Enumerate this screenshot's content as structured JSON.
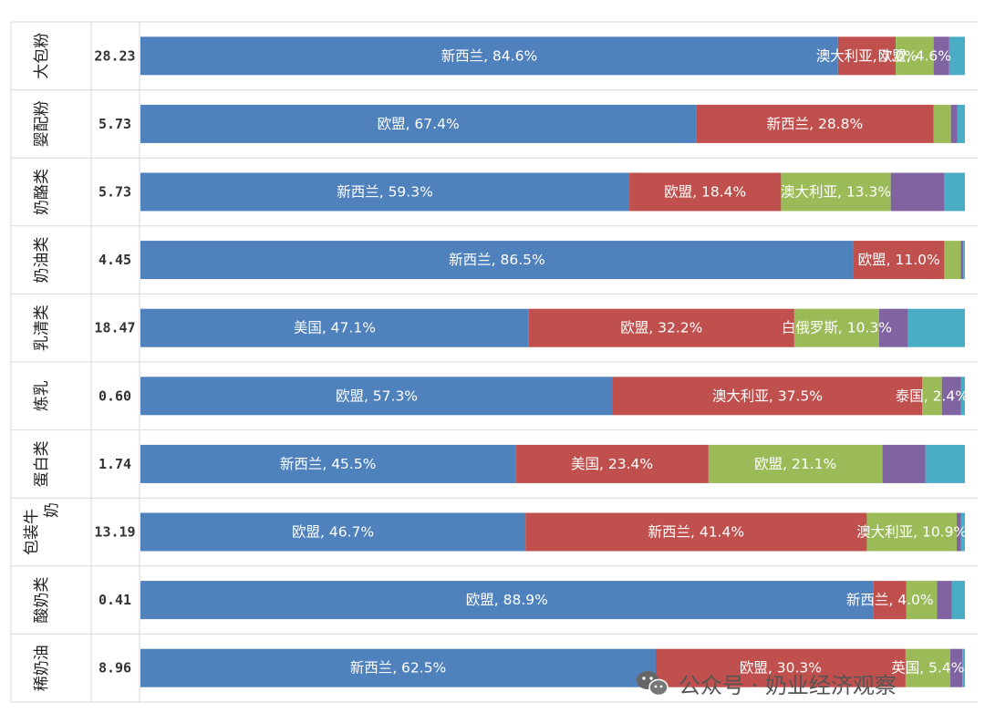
{
  "chart_data": {
    "type": "bar",
    "orientation": "horizontal",
    "stacked": true,
    "percent": true,
    "xlim": [
      0,
      100
    ],
    "grid": true,
    "categories": [
      "大包粉",
      "婴配粉",
      "奶酪类",
      "奶油类",
      "乳清类",
      "炼乳",
      "蛋白类",
      "包装牛奶",
      "酸奶类",
      "稀奶油"
    ],
    "row_values": [
      "28.23",
      "5.73",
      "5.73",
      "4.45",
      "18.47",
      "0.60",
      "1.74",
      "13.19",
      "0.41",
      "8.96"
    ],
    "segments": [
      [
        {
          "value": 84.6,
          "label": "新西兰, 84.6%",
          "color": "#4f81bd"
        },
        {
          "value": 7.0,
          "label": "澳大利亚, 7.0%",
          "color": "#c0504d"
        },
        {
          "value": 4.6,
          "label": "欧盟, 4.6%",
          "color": "#9bbb59"
        },
        {
          "value": 1.9,
          "label": "",
          "color": "#8064a2"
        },
        {
          "value": 1.9,
          "label": "",
          "color": "#4bacc6"
        }
      ],
      [
        {
          "value": 67.4,
          "label": "欧盟, 67.4%",
          "color": "#4f81bd"
        },
        {
          "value": 28.8,
          "label": "新西兰, 28.8%",
          "color": "#c0504d"
        },
        {
          "value": 2.1,
          "label": "",
          "color": "#9bbb59"
        },
        {
          "value": 0.8,
          "label": "",
          "color": "#8064a2"
        },
        {
          "value": 0.9,
          "label": "",
          "color": "#4bacc6"
        }
      ],
      [
        {
          "value": 59.3,
          "label": "新西兰, 59.3%",
          "color": "#4f81bd"
        },
        {
          "value": 18.4,
          "label": "欧盟, 18.4%",
          "color": "#c0504d"
        },
        {
          "value": 13.3,
          "label": "澳大利亚, 13.3%",
          "color": "#9bbb59"
        },
        {
          "value": 6.5,
          "label": "",
          "color": "#8064a2"
        },
        {
          "value": 2.5,
          "label": "",
          "color": "#4bacc6"
        }
      ],
      [
        {
          "value": 86.5,
          "label": "新西兰, 86.5%",
          "color": "#4f81bd"
        },
        {
          "value": 11.0,
          "label": "欧盟, 11.0%",
          "color": "#c0504d"
        },
        {
          "value": 2.0,
          "label": "",
          "color": "#9bbb59"
        },
        {
          "value": 0.3,
          "label": "",
          "color": "#8064a2"
        },
        {
          "value": 0.2,
          "label": "",
          "color": "#4bacc6"
        }
      ],
      [
        {
          "value": 47.1,
          "label": "美国, 47.1%",
          "color": "#4f81bd"
        },
        {
          "value": 32.2,
          "label": "欧盟, 32.2%",
          "color": "#c0504d"
        },
        {
          "value": 10.3,
          "label": "白俄罗斯, 10.3%",
          "color": "#9bbb59"
        },
        {
          "value": 3.5,
          "label": "",
          "color": "#8064a2"
        },
        {
          "value": 6.9,
          "label": "",
          "color": "#4bacc6"
        }
      ],
      [
        {
          "value": 57.3,
          "label": "欧盟, 57.3%",
          "color": "#4f81bd"
        },
        {
          "value": 37.5,
          "label": "澳大利亚, 37.5%",
          "color": "#c0504d"
        },
        {
          "value": 2.4,
          "label": "泰国, 2.4%",
          "color": "#9bbb59"
        },
        {
          "value": 2.3,
          "label": "",
          "color": "#8064a2"
        },
        {
          "value": 0.5,
          "label": "",
          "color": "#4bacc6"
        }
      ],
      [
        {
          "value": 45.5,
          "label": "新西兰, 45.5%",
          "color": "#4f81bd"
        },
        {
          "value": 23.4,
          "label": "美国, 23.4%",
          "color": "#c0504d"
        },
        {
          "value": 21.1,
          "label": "欧盟, 21.1%",
          "color": "#9bbb59"
        },
        {
          "value": 5.2,
          "label": "",
          "color": "#8064a2"
        },
        {
          "value": 4.8,
          "label": "",
          "color": "#4bacc6"
        }
      ],
      [
        {
          "value": 46.7,
          "label": "欧盟, 46.7%",
          "color": "#4f81bd"
        },
        {
          "value": 41.4,
          "label": "新西兰, 41.4%",
          "color": "#c0504d"
        },
        {
          "value": 10.9,
          "label": "澳大利亚, 10.9%",
          "color": "#9bbb59"
        },
        {
          "value": 0.5,
          "label": "",
          "color": "#8064a2"
        },
        {
          "value": 0.5,
          "label": "",
          "color": "#4bacc6"
        }
      ],
      [
        {
          "value": 88.9,
          "label": "欧盟, 88.9%",
          "color": "#4f81bd"
        },
        {
          "value": 4.0,
          "label": "新西兰, 4.0%",
          "color": "#c0504d"
        },
        {
          "value": 3.7,
          "label": "",
          "color": "#9bbb59"
        },
        {
          "value": 1.8,
          "label": "",
          "color": "#8064a2"
        },
        {
          "value": 1.6,
          "label": "",
          "color": "#4bacc6"
        }
      ],
      [
        {
          "value": 62.5,
          "label": "新西兰, 62.5%",
          "color": "#4f81bd"
        },
        {
          "value": 30.3,
          "label": "欧盟, 30.3%",
          "color": "#c0504d"
        },
        {
          "value": 5.4,
          "label": "英国, 5.4%",
          "color": "#9bbb59"
        },
        {
          "value": 1.5,
          "label": "",
          "color": "#8064a2"
        },
        {
          "value": 0.3,
          "label": "",
          "color": "#4bacc6"
        }
      ]
    ]
  },
  "watermark": {
    "text": "公众号 · 奶业经济观察",
    "icon": "wechat-icon"
  }
}
